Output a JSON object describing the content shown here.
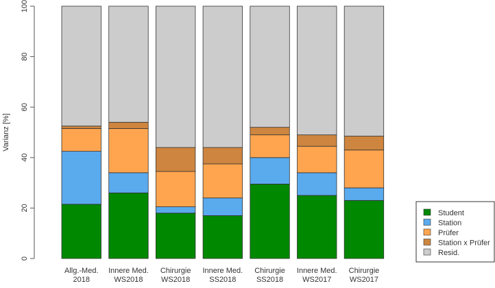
{
  "chart_data": {
    "type": "bar",
    "stacked": true,
    "title": "",
    "xlabel": "",
    "ylabel": "Varianz [%]",
    "ylim": [
      0,
      100
    ],
    "yticks": [
      0,
      20,
      40,
      60,
      80,
      100
    ],
    "grid": false,
    "legend_position": "bottom-right",
    "categories": [
      [
        "Allg.-Med.",
        "2018"
      ],
      [
        "Innere Med.",
        "WS2018"
      ],
      [
        "Chirurgie",
        "WS2018"
      ],
      [
        "Innere Med.",
        "SS2018"
      ],
      [
        "Chirurgie",
        "SS2018"
      ],
      [
        "Innere Med.",
        "WS2017"
      ],
      [
        "Chirurgie",
        "WS2017"
      ]
    ],
    "series": [
      {
        "name": "Student",
        "color": "#008800",
        "values": [
          21.5,
          26,
          18,
          17,
          29.5,
          25,
          23
        ]
      },
      {
        "name": "Station",
        "color": "#5AAAEE",
        "values": [
          21,
          8,
          2.5,
          7,
          10.5,
          9,
          5
        ]
      },
      {
        "name": "Prüfer",
        "color": "#FFA54F",
        "values": [
          9,
          17.5,
          14,
          13.5,
          9,
          10.5,
          15
        ]
      },
      {
        "name": "Station x Prüfer",
        "color": "#CD853F",
        "values": [
          1,
          2.5,
          9.5,
          6.5,
          3,
          4.5,
          5.5
        ]
      },
      {
        "name": "Resid.",
        "color": "#CCCCCC",
        "values": [
          47.5,
          46,
          56,
          56,
          48,
          51,
          51.5
        ]
      }
    ]
  }
}
